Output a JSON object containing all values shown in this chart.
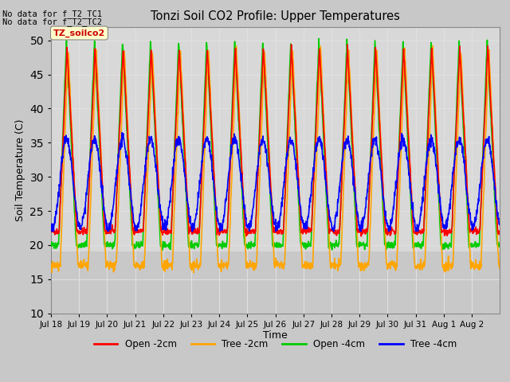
{
  "title": "Tonzi Soil CO2 Profile: Upper Temperatures",
  "ylabel": "Soil Temperature (C)",
  "xlabel": "Time",
  "ylim": [
    10,
    52
  ],
  "yticks": [
    10,
    15,
    20,
    25,
    30,
    35,
    40,
    45,
    50
  ],
  "fig_bg": "#c8c8c8",
  "plot_bg_upper": "#d8d8d8",
  "plot_bg_lower": "#c0c0c0",
  "lower_threshold": 19,
  "annotation1": "No data for f_T2_TC1",
  "annotation2": "No data for f_T2_TC2",
  "legend_label": "TZ_soilco2",
  "series_labels": [
    "Open -2cm",
    "Tree -2cm",
    "Open -4cm",
    "Tree -4cm"
  ],
  "series_colors": [
    "#ff0000",
    "#ffa500",
    "#00cc00",
    "#0000ff"
  ],
  "series_lw": [
    1.2,
    1.2,
    1.2,
    1.2
  ],
  "n_days": 16,
  "grid_color": "#e0e0e0",
  "grid_lw": 0.8,
  "tick_labels": [
    "Jul 18",
    "Jul 19",
    "Jul 20",
    "Jul 21",
    "Jul 22",
    "Jul 23",
    "Jul 24",
    "Jul 25",
    "Jul 26",
    "Jul 27",
    "Jul 28",
    "Jul 29",
    "Jul 30",
    "Jul 31",
    "Aug 1",
    "Aug 2"
  ]
}
